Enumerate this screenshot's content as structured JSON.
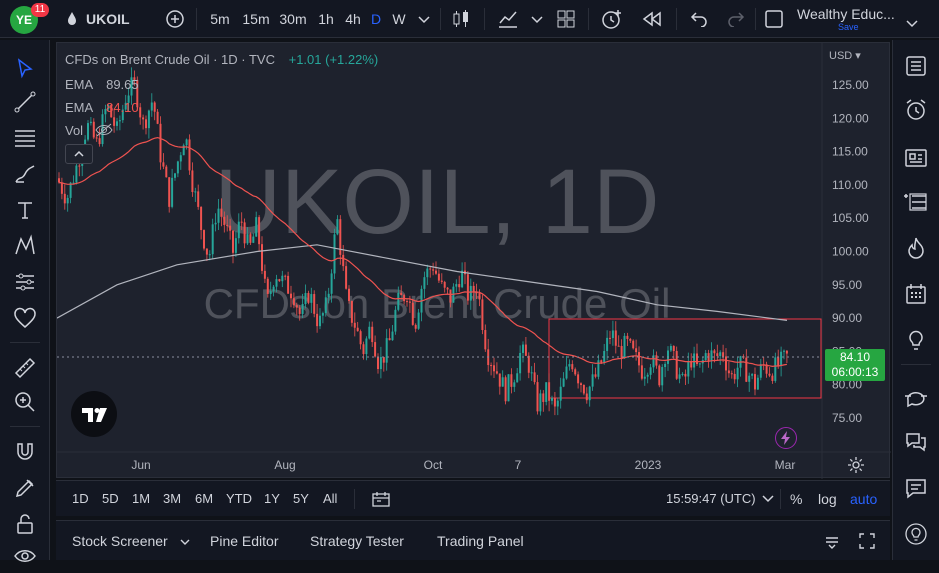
{
  "topbar": {
    "notification_count": "11",
    "symbol": "UKOIL",
    "intervals": [
      "5m",
      "15m",
      "30m",
      "1h",
      "4h",
      "D",
      "W"
    ],
    "selected_interval": "D",
    "account_name": "Wealthy Educ...",
    "save_label": "Save"
  },
  "legend": {
    "title": "CFDs on Brent Crude Oil · 1D · TVC",
    "change": "+1.01 (+1.22%)",
    "ema1_label": "EMA",
    "ema1_value": "89.65",
    "ema2_label": "EMA",
    "ema2_value": "84.10",
    "vol_label": "Vol"
  },
  "watermark": {
    "big": "UKOIL, 1D",
    "small": "CFDs on Brent Crude Oil"
  },
  "price_axis": {
    "currency": "USD",
    "ticks": [
      "125.00",
      "120.00",
      "115.00",
      "110.00",
      "105.00",
      "100.00",
      "95.00",
      "90.00",
      "85.00",
      "80.00",
      "75.00"
    ],
    "last_price": "84.10",
    "countdown": "06:00:13"
  },
  "time_axis": {
    "labels": [
      "Jun",
      "Aug",
      "Oct",
      "7",
      "2023",
      "Mar"
    ]
  },
  "bottom_toolbar": {
    "ranges": [
      "1D",
      "5D",
      "1M",
      "3M",
      "6M",
      "YTD",
      "1Y",
      "5Y",
      "All"
    ],
    "clock": "15:59:47 (UTC)",
    "percent_label": "%",
    "log_label": "log",
    "auto_label": "auto"
  },
  "panel_tabs": [
    "Stock Screener",
    "Pine Editor",
    "Strategy Tester",
    "Trading Panel"
  ],
  "colors": {
    "up": "#26a69a",
    "down": "#ef5350",
    "accent": "#2962ff",
    "ema_fast": "#ef5350",
    "ema_slow": "#b2b5be",
    "last_price_bg": "#26a641"
  },
  "chart_data": {
    "type": "candlestick",
    "ylim": [
      72,
      128
    ],
    "points": [
      [
        0,
        111
      ],
      [
        10,
        108
      ],
      [
        20,
        113
      ],
      [
        30,
        119
      ],
      [
        40,
        116
      ],
      [
        50,
        122
      ],
      [
        60,
        118
      ],
      [
        70,
        124
      ],
      [
        78,
        125
      ],
      [
        86,
        119
      ],
      [
        96,
        123
      ],
      [
        104,
        114
      ],
      [
        112,
        108
      ],
      [
        120,
        113
      ],
      [
        128,
        118
      ],
      [
        136,
        110
      ],
      [
        145,
        103
      ],
      [
        152,
        99
      ],
      [
        160,
        107
      ],
      [
        168,
        104
      ],
      [
        176,
        100
      ],
      [
        184,
        105
      ],
      [
        192,
        100
      ],
      [
        200,
        104
      ],
      [
        210,
        92
      ],
      [
        218,
        97
      ],
      [
        228,
        95
      ],
      [
        236,
        94
      ],
      [
        244,
        90
      ],
      [
        252,
        94
      ],
      [
        262,
        89
      ],
      [
        270,
        92
      ],
      [
        280,
        105
      ],
      [
        290,
        92
      ],
      [
        298,
        89
      ],
      [
        306,
        85
      ],
      [
        314,
        89
      ],
      [
        322,
        83
      ],
      [
        332,
        86
      ],
      [
        340,
        92
      ],
      [
        350,
        94
      ],
      [
        358,
        89
      ],
      [
        366,
        96
      ],
      [
        376,
        98
      ],
      [
        386,
        94
      ],
      [
        394,
        93
      ],
      [
        404,
        97
      ],
      [
        412,
        93
      ],
      [
        420,
        95
      ],
      [
        430,
        85
      ],
      [
        440,
        82
      ],
      [
        448,
        79
      ],
      [
        456,
        81
      ],
      [
        464,
        85
      ],
      [
        472,
        83
      ],
      [
        480,
        77
      ],
      [
        490,
        79
      ],
      [
        498,
        76
      ],
      [
        506,
        80
      ],
      [
        514,
        84
      ],
      [
        522,
        81
      ],
      [
        530,
        79
      ],
      [
        538,
        81
      ],
      [
        546,
        84
      ],
      [
        554,
        88
      ],
      [
        562,
        85
      ],
      [
        570,
        86
      ],
      [
        578,
        84
      ],
      [
        586,
        82
      ],
      [
        594,
        84
      ],
      [
        602,
        81
      ],
      [
        610,
        86
      ],
      [
        618,
        83
      ],
      [
        626,
        80
      ],
      [
        634,
        84
      ],
      [
        642,
        82
      ],
      [
        650,
        85
      ],
      [
        658,
        84
      ],
      [
        666,
        85
      ],
      [
        674,
        81
      ],
      [
        682,
        83
      ],
      [
        690,
        82
      ],
      [
        698,
        80
      ],
      [
        706,
        83
      ],
      [
        714,
        82
      ],
      [
        722,
        83
      ],
      [
        730,
        84.1
      ]
    ],
    "ema_fast_label": "EMA",
    "ema_fast_value": 84.1,
    "ema_slow_label": "EMA",
    "ema_slow_value": 89.65
  }
}
